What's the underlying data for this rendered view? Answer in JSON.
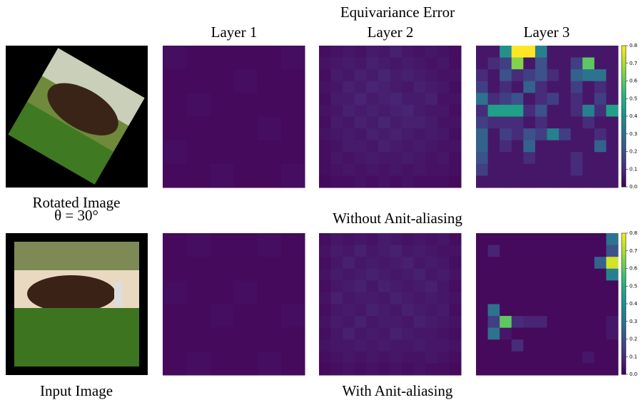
{
  "title": "Equivariance Error",
  "column_titles": [
    "Layer 1",
    "Layer 2",
    "Layer 3"
  ],
  "colorbar": {
    "ylim": [
      0,
      0.8
    ],
    "yticks": [
      {
        "value": 0,
        "label": "0.0"
      },
      0.1,
      0.2,
      0.3,
      0.4,
      0.5,
      0.6,
      0.7,
      0.8
    ]
  },
  "rows": [
    {
      "image_caption": [
        "Rotated Image",
        "θ = 30°"
      ],
      "row_caption": "Without Anit-aliasing",
      "heatmaps": [
        {
          "values": [
            [
              0.03,
              0.02,
              0.02,
              0.02,
              0.02,
              0.03
            ],
            [
              0.02,
              0.02,
              0.02,
              0.03,
              0.02,
              0.02
            ],
            [
              0.02,
              0.03,
              0.02,
              0.02,
              0.02,
              0.02
            ],
            [
              0.02,
              0.02,
              0.02,
              0.02,
              0.03,
              0.02
            ],
            [
              0.03,
              0.02,
              0.02,
              0.02,
              0.02,
              0.02
            ],
            [
              0.02,
              0.02,
              0.03,
              0.02,
              0.02,
              0.03
            ]
          ]
        },
        {
          "values": [
            [
              0.03,
              0.04,
              0.05,
              0.04,
              0.06,
              0.05,
              0.07,
              0.05,
              0.04,
              0.05,
              0.04,
              0.03
            ],
            [
              0.04,
              0.05,
              0.06,
              0.05,
              0.07,
              0.06,
              0.05,
              0.06,
              0.05,
              0.04,
              0.05,
              0.03
            ],
            [
              0.03,
              0.06,
              0.05,
              0.07,
              0.06,
              0.08,
              0.06,
              0.07,
              0.06,
              0.05,
              0.04,
              0.04
            ],
            [
              0.04,
              0.05,
              0.07,
              0.06,
              0.08,
              0.07,
              0.06,
              0.05,
              0.07,
              0.06,
              0.05,
              0.03
            ],
            [
              0.03,
              0.06,
              0.06,
              0.08,
              0.06,
              0.07,
              0.08,
              0.06,
              0.06,
              0.07,
              0.04,
              0.04
            ],
            [
              0.04,
              0.05,
              0.07,
              0.06,
              0.07,
              0.06,
              0.07,
              0.08,
              0.06,
              0.05,
              0.05,
              0.03
            ],
            [
              0.03,
              0.06,
              0.05,
              0.07,
              0.06,
              0.08,
              0.06,
              0.07,
              0.07,
              0.06,
              0.04,
              0.04
            ],
            [
              0.04,
              0.05,
              0.06,
              0.05,
              0.07,
              0.06,
              0.07,
              0.06,
              0.05,
              0.06,
              0.05,
              0.03
            ],
            [
              0.03,
              0.04,
              0.06,
              0.06,
              0.05,
              0.07,
              0.06,
              0.05,
              0.06,
              0.05,
              0.04,
              0.04
            ],
            [
              0.03,
              0.05,
              0.04,
              0.05,
              0.06,
              0.05,
              0.05,
              0.06,
              0.05,
              0.04,
              0.05,
              0.03
            ],
            [
              0.03,
              0.04,
              0.05,
              0.04,
              0.05,
              0.04,
              0.05,
              0.04,
              0.05,
              0.04,
              0.04,
              0.03
            ],
            [
              0.02,
              0.03,
              0.03,
              0.04,
              0.03,
              0.04,
              0.03,
              0.04,
              0.03,
              0.03,
              0.03,
              0.02
            ]
          ]
        },
        {
          "values": [
            [
              0.05,
              0.05,
              0.4,
              0.8,
              0.8,
              0.35,
              0.05,
              0.05,
              0.05,
              0.05,
              0.05,
              0.05
            ],
            [
              0.05,
              0.1,
              0.15,
              0.65,
              0.05,
              0.2,
              0.05,
              0.05,
              0.15,
              0.6,
              0.05,
              0.05
            ],
            [
              0.1,
              0.05,
              0.2,
              0.1,
              0.15,
              0.2,
              0.1,
              0.05,
              0.25,
              0.3,
              0.3,
              0.05
            ],
            [
              0.15,
              0.05,
              0.1,
              0.05,
              0.25,
              0.1,
              0.05,
              0.05,
              0.15,
              0.05,
              0.1,
              0.05
            ],
            [
              0.3,
              0.1,
              0.15,
              0.2,
              0.05,
              0.1,
              0.15,
              0.05,
              0.1,
              0.05,
              0.15,
              0.05
            ],
            [
              0.1,
              0.45,
              0.45,
              0.45,
              0.1,
              0.2,
              0.05,
              0.05,
              0.1,
              0.35,
              0.1,
              0.45
            ],
            [
              0.15,
              0.1,
              0.1,
              0.1,
              0.05,
              0.1,
              0.05,
              0.05,
              0.05,
              0.1,
              0.05,
              0.05
            ],
            [
              0.25,
              0.05,
              0.15,
              0.1,
              0.2,
              0.15,
              0.35,
              0.15,
              0.05,
              0.05,
              0.1,
              0.05
            ],
            [
              0.25,
              0.05,
              0.1,
              0.05,
              0.25,
              0.05,
              0.05,
              0.05,
              0.05,
              0.05,
              0.25,
              0.05
            ],
            [
              0.2,
              0.05,
              0.05,
              0.05,
              0.1,
              0.05,
              0.05,
              0.05,
              0.1,
              0.05,
              0.05,
              0.05
            ],
            [
              0.15,
              0.05,
              0.05,
              0.05,
              0.05,
              0.05,
              0.05,
              0.05,
              0.1,
              0.05,
              0.05,
              0.05
            ],
            [
              0.05,
              0.05,
              0.05,
              0.05,
              0.05,
              0.05,
              0.05,
              0.05,
              0.05,
              0.05,
              0.05,
              0.05
            ]
          ]
        }
      ]
    },
    {
      "image_caption": [
        "Input Image"
      ],
      "row_caption": "With Anit-aliasing",
      "heatmaps": [
        {
          "values": [
            [
              0.02,
              0.03,
              0.02,
              0.02,
              0.03,
              0.02
            ],
            [
              0.02,
              0.02,
              0.02,
              0.02,
              0.02,
              0.02
            ],
            [
              0.03,
              0.02,
              0.02,
              0.03,
              0.02,
              0.02
            ],
            [
              0.02,
              0.02,
              0.03,
              0.02,
              0.02,
              0.03
            ],
            [
              0.02,
              0.02,
              0.02,
              0.02,
              0.02,
              0.02
            ],
            [
              0.02,
              0.03,
              0.02,
              0.02,
              0.03,
              0.02
            ]
          ]
        },
        {
          "values": [
            [
              0.03,
              0.05,
              0.04,
              0.05,
              0.04,
              0.06,
              0.05,
              0.04,
              0.05,
              0.04,
              0.05,
              0.03
            ],
            [
              0.04,
              0.06,
              0.05,
              0.07,
              0.05,
              0.06,
              0.07,
              0.05,
              0.06,
              0.05,
              0.04,
              0.04
            ],
            [
              0.03,
              0.05,
              0.07,
              0.05,
              0.06,
              0.05,
              0.06,
              0.07,
              0.05,
              0.06,
              0.05,
              0.03
            ],
            [
              0.04,
              0.06,
              0.05,
              0.06,
              0.07,
              0.06,
              0.05,
              0.06,
              0.07,
              0.05,
              0.06,
              0.04
            ],
            [
              0.03,
              0.05,
              0.06,
              0.07,
              0.05,
              0.07,
              0.06,
              0.05,
              0.06,
              0.07,
              0.05,
              0.03
            ],
            [
              0.04,
              0.07,
              0.05,
              0.06,
              0.06,
              0.05,
              0.07,
              0.06,
              0.05,
              0.06,
              0.05,
              0.04
            ],
            [
              0.03,
              0.05,
              0.06,
              0.05,
              0.07,
              0.06,
              0.05,
              0.07,
              0.06,
              0.05,
              0.06,
              0.03
            ],
            [
              0.04,
              0.06,
              0.05,
              0.07,
              0.05,
              0.06,
              0.06,
              0.05,
              0.07,
              0.06,
              0.05,
              0.04
            ],
            [
              0.03,
              0.05,
              0.07,
              0.05,
              0.06,
              0.05,
              0.07,
              0.06,
              0.05,
              0.05,
              0.04,
              0.03
            ],
            [
              0.04,
              0.05,
              0.05,
              0.06,
              0.05,
              0.06,
              0.05,
              0.05,
              0.06,
              0.05,
              0.05,
              0.04
            ],
            [
              0.03,
              0.04,
              0.05,
              0.04,
              0.05,
              0.04,
              0.05,
              0.04,
              0.04,
              0.05,
              0.04,
              0.03
            ],
            [
              0.02,
              0.03,
              0.04,
              0.03,
              0.04,
              0.03,
              0.04,
              0.03,
              0.04,
              0.03,
              0.03,
              0.02
            ]
          ]
        },
        {
          "values": [
            [
              0.02,
              0.02,
              0.02,
              0.02,
              0.02,
              0.02,
              0.02,
              0.02,
              0.02,
              0.02,
              0.02,
              0.3
            ],
            [
              0.02,
              0.08,
              0.02,
              0.02,
              0.02,
              0.02,
              0.02,
              0.02,
              0.02,
              0.02,
              0.02,
              0.2
            ],
            [
              0.02,
              0.02,
              0.02,
              0.02,
              0.02,
              0.02,
              0.02,
              0.02,
              0.02,
              0.02,
              0.25,
              0.75
            ],
            [
              0.02,
              0.02,
              0.02,
              0.02,
              0.02,
              0.02,
              0.02,
              0.02,
              0.02,
              0.02,
              0.02,
              0.35
            ],
            [
              0.02,
              0.02,
              0.02,
              0.02,
              0.02,
              0.02,
              0.02,
              0.02,
              0.02,
              0.02,
              0.02,
              0.02
            ],
            [
              0.02,
              0.02,
              0.02,
              0.02,
              0.02,
              0.02,
              0.02,
              0.02,
              0.02,
              0.02,
              0.02,
              0.02
            ],
            [
              0.02,
              0.3,
              0.02,
              0.02,
              0.02,
              0.02,
              0.02,
              0.02,
              0.02,
              0.02,
              0.02,
              0.02
            ],
            [
              0.02,
              0.15,
              0.6,
              0.1,
              0.08,
              0.08,
              0.02,
              0.02,
              0.02,
              0.02,
              0.02,
              0.05
            ],
            [
              0.02,
              0.3,
              0.05,
              0.02,
              0.02,
              0.02,
              0.02,
              0.02,
              0.02,
              0.02,
              0.02,
              0.05
            ],
            [
              0.02,
              0.02,
              0.02,
              0.1,
              0.02,
              0.02,
              0.02,
              0.02,
              0.02,
              0.02,
              0.02,
              0.02
            ],
            [
              0.02,
              0.02,
              0.02,
              0.02,
              0.02,
              0.02,
              0.02,
              0.02,
              0.02,
              0.05,
              0.02,
              0.02
            ],
            [
              0.02,
              0.02,
              0.02,
              0.02,
              0.02,
              0.02,
              0.02,
              0.02,
              0.02,
              0.02,
              0.02,
              0.02
            ]
          ]
        }
      ]
    }
  ]
}
